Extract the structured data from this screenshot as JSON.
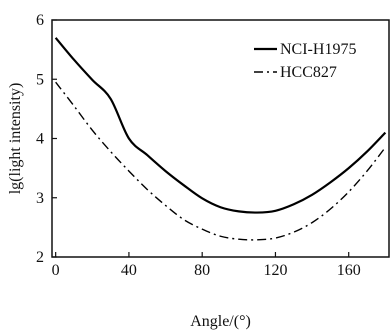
{
  "chart_data": {
    "type": "line",
    "xlabel": "Angle/(°)",
    "ylabel": "lg(light intensity)",
    "xlim": [
      -2,
      182
    ],
    "ylim": [
      2,
      6
    ],
    "xticks": [
      0,
      40,
      80,
      120,
      160
    ],
    "yticks": [
      2,
      3,
      4,
      5,
      6
    ],
    "legend_position": "top-right",
    "grid": false,
    "series": [
      {
        "name": "NCI-H1975",
        "style": "solid",
        "color": "#000000",
        "x": [
          0,
          10,
          20,
          30,
          40,
          50,
          60,
          70,
          80,
          90,
          100,
          110,
          120,
          130,
          140,
          150,
          160,
          170,
          180
        ],
        "y": [
          5.7,
          5.33,
          4.99,
          4.67,
          4.0,
          3.72,
          3.45,
          3.21,
          2.99,
          2.84,
          2.77,
          2.75,
          2.78,
          2.89,
          3.05,
          3.26,
          3.5,
          3.78,
          4.1
        ]
      },
      {
        "name": "HCC827",
        "style": "dashdot",
        "color": "#000000",
        "x": [
          0,
          10,
          20,
          30,
          40,
          50,
          60,
          70,
          80,
          90,
          100,
          110,
          120,
          130,
          140,
          150,
          160,
          170,
          180
        ],
        "y": [
          4.95,
          4.55,
          4.14,
          3.78,
          3.45,
          3.14,
          2.87,
          2.63,
          2.47,
          2.35,
          2.3,
          2.29,
          2.32,
          2.42,
          2.58,
          2.81,
          3.1,
          3.45,
          3.85
        ]
      }
    ]
  }
}
